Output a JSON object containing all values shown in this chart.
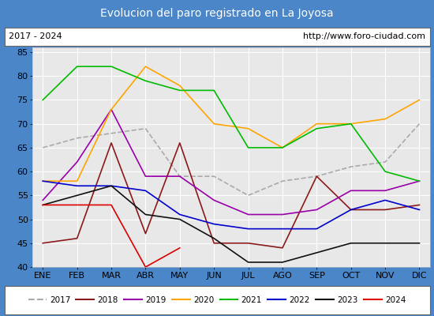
{
  "title": "Evolucion del paro registrado en La Joyosa",
  "title_bg": "#4a86c8",
  "subtitle_left": "2017 - 2024",
  "subtitle_right": "http://www.foro-ciudad.com",
  "months": [
    "ENE",
    "FEB",
    "MAR",
    "ABR",
    "MAY",
    "JUN",
    "JUL",
    "AGO",
    "SEP",
    "OCT",
    "NOV",
    "DIC"
  ],
  "ylim": [
    40,
    86
  ],
  "yticks": [
    40,
    45,
    50,
    55,
    60,
    65,
    70,
    75,
    80,
    85
  ],
  "series": {
    "2017": {
      "color": "#aaaaaa",
      "linestyle": "--",
      "linewidth": 1.2,
      "data": [
        65,
        67,
        68,
        69,
        59,
        59,
        55,
        58,
        59,
        61,
        62,
        70
      ]
    },
    "2018": {
      "color": "#8b1a1a",
      "linestyle": "-",
      "linewidth": 1.2,
      "data": [
        45,
        46,
        66,
        47,
        66,
        45,
        45,
        44,
        59,
        52,
        52,
        53
      ]
    },
    "2019": {
      "color": "#9900aa",
      "linestyle": "-",
      "linewidth": 1.2,
      "data": [
        54,
        62,
        73,
        59,
        59,
        54,
        51,
        51,
        52,
        56,
        56,
        58
      ]
    },
    "2020": {
      "color": "#ffa500",
      "linestyle": "-",
      "linewidth": 1.2,
      "data": [
        58,
        58,
        73,
        82,
        78,
        70,
        69,
        65,
        70,
        70,
        71,
        75
      ]
    },
    "2021": {
      "color": "#00bb00",
      "linestyle": "-",
      "linewidth": 1.2,
      "data": [
        75,
        82,
        82,
        79,
        77,
        77,
        65,
        65,
        69,
        70,
        60,
        58
      ]
    },
    "2022": {
      "color": "#0000cc",
      "linestyle": "-",
      "linewidth": 1.2,
      "data": [
        58,
        57,
        57,
        56,
        51,
        49,
        48,
        48,
        48,
        52,
        54,
        52
      ]
    },
    "2023": {
      "color": "#111111",
      "linestyle": "-",
      "linewidth": 1.2,
      "data": [
        53,
        55,
        57,
        51,
        50,
        46,
        41,
        41,
        43,
        45,
        45,
        45
      ]
    },
    "2024": {
      "color": "#dd0000",
      "linestyle": "-",
      "linewidth": 1.2,
      "data": [
        53,
        53,
        53,
        40,
        44,
        null,
        null,
        null,
        null,
        null,
        null,
        null
      ]
    }
  }
}
